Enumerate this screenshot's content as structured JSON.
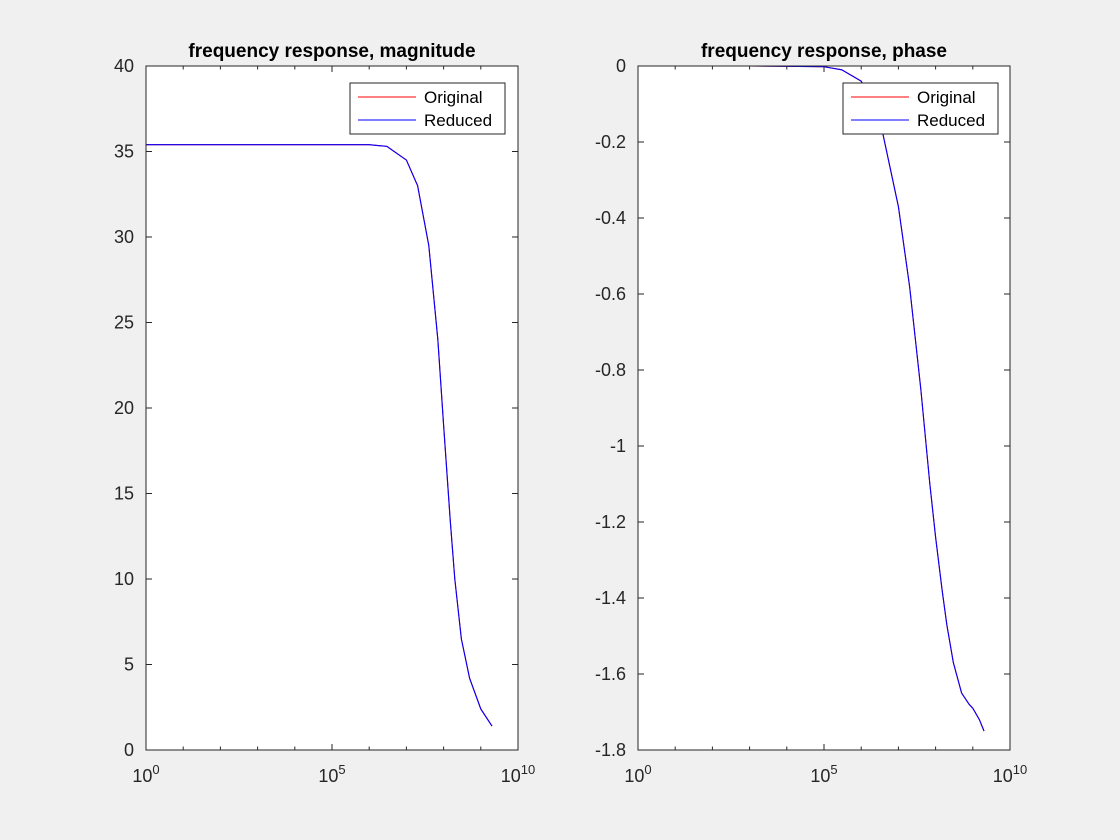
{
  "figure": {
    "background": "#f0f0f0"
  },
  "chart_data": [
    {
      "type": "line",
      "title": "frequency response, magnitude",
      "xlabel": "",
      "ylabel": "",
      "xscale": "log",
      "xlim": [
        1,
        10000000000
      ],
      "ylim": [
        0,
        40
      ],
      "xticks": [
        {
          "base": "10",
          "exp": "0"
        },
        {
          "base": "10",
          "exp": "5"
        },
        {
          "base": "10",
          "exp": "10"
        }
      ],
      "yticks": [
        "0",
        "5",
        "10",
        "15",
        "20",
        "25",
        "30",
        "35",
        "40"
      ],
      "legend": {
        "position": "top-right",
        "entries": [
          "Original",
          "Reduced"
        ]
      },
      "grid": false,
      "series": [
        {
          "name": "Original",
          "color": "#ff0000",
          "x": [
            1,
            1000,
            100000,
            1000000,
            3000000,
            10000000,
            20000000,
            40000000,
            70000000,
            100000000,
            150000000,
            200000000,
            300000000,
            500000000,
            1000000000,
            2000000000
          ],
          "y": [
            35.4,
            35.4,
            35.4,
            35.4,
            35.3,
            34.5,
            33.0,
            29.5,
            24.0,
            19.0,
            13.5,
            10.0,
            6.5,
            4.2,
            2.4,
            1.4
          ]
        },
        {
          "name": "Reduced",
          "color": "#0000ff",
          "x": [
            1,
            1000,
            100000,
            1000000,
            3000000,
            10000000,
            20000000,
            40000000,
            70000000,
            100000000,
            150000000,
            200000000,
            300000000,
            500000000,
            1000000000,
            2000000000
          ],
          "y": [
            35.4,
            35.4,
            35.4,
            35.4,
            35.3,
            34.5,
            33.0,
            29.5,
            24.0,
            19.0,
            13.5,
            10.0,
            6.5,
            4.2,
            2.4,
            1.4
          ]
        }
      ]
    },
    {
      "type": "line",
      "title": "frequency response, phase",
      "xlabel": "",
      "ylabel": "",
      "xscale": "log",
      "xlim": [
        1,
        10000000000
      ],
      "ylim": [
        -1.8,
        0
      ],
      "xticks": [
        {
          "base": "10",
          "exp": "0"
        },
        {
          "base": "10",
          "exp": "5"
        },
        {
          "base": "10",
          "exp": "10"
        }
      ],
      "yticks": [
        "-1.8",
        "-1.6",
        "-1.4",
        "-1.2",
        "-1",
        "-0.8",
        "-0.6",
        "-0.4",
        "-0.2",
        "0"
      ],
      "legend": {
        "position": "top-right",
        "entries": [
          "Original",
          "Reduced"
        ]
      },
      "grid": false,
      "series": [
        {
          "name": "Original",
          "color": "#ff0000",
          "x": [
            1,
            1000,
            100000,
            300000,
            1000000,
            3000000,
            10000000,
            20000000,
            40000000,
            70000000,
            100000000,
            150000000,
            200000000,
            300000000,
            500000000,
            800000000,
            1000000000,
            1500000000,
            2000000000
          ],
          "y": [
            0,
            0,
            -0.002,
            -0.01,
            -0.04,
            -0.13,
            -0.37,
            -0.58,
            -0.85,
            -1.1,
            -1.24,
            -1.38,
            -1.47,
            -1.57,
            -1.65,
            -1.68,
            -1.69,
            -1.72,
            -1.75
          ]
        },
        {
          "name": "Reduced",
          "color": "#0000ff",
          "x": [
            1,
            1000,
            100000,
            300000,
            1000000,
            3000000,
            10000000,
            20000000,
            40000000,
            70000000,
            100000000,
            150000000,
            200000000,
            300000000,
            500000000,
            800000000,
            1000000000,
            1500000000,
            2000000000
          ],
          "y": [
            0,
            0,
            -0.002,
            -0.01,
            -0.04,
            -0.13,
            -0.37,
            -0.58,
            -0.85,
            -1.1,
            -1.24,
            -1.38,
            -1.47,
            -1.57,
            -1.65,
            -1.68,
            -1.69,
            -1.72,
            -1.75
          ]
        }
      ]
    }
  ]
}
